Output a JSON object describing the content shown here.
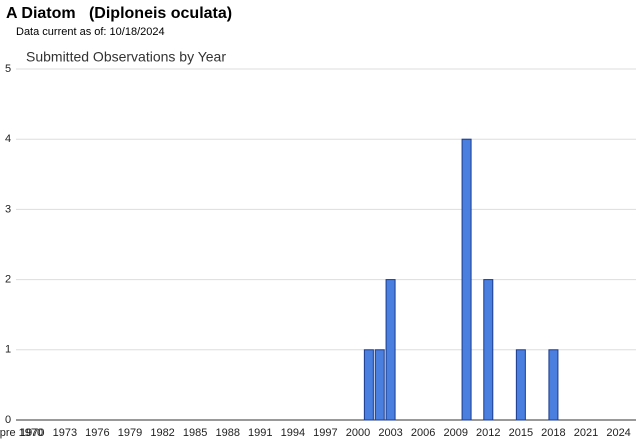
{
  "header": {
    "title": "A Diatom   (Diploneis oculata)",
    "subtitle": "Data current as of: 10/18/2024"
  },
  "chart_data": {
    "type": "bar",
    "title": "Submitted Observations by Year",
    "categories": [
      "pre 1970",
      "1970",
      null,
      null,
      "1973",
      null,
      null,
      "1976",
      null,
      null,
      "1979",
      null,
      null,
      "1982",
      null,
      null,
      "1985",
      null,
      null,
      "1988",
      null,
      null,
      "1991",
      null,
      null,
      "1994",
      null,
      null,
      "1997",
      null,
      null,
      "2000",
      null,
      null,
      "2003",
      null,
      null,
      "2006",
      null,
      null,
      "2009",
      null,
      null,
      "2012",
      null,
      null,
      "2015",
      null,
      null,
      "2018",
      null,
      null,
      "2021",
      null,
      null,
      "2024"
    ],
    "values": [
      0,
      0,
      0,
      0,
      0,
      0,
      0,
      0,
      0,
      0,
      0,
      0,
      0,
      0,
      0,
      0,
      0,
      0,
      0,
      0,
      0,
      0,
      0,
      0,
      0,
      0,
      0,
      0,
      0,
      0,
      0,
      0,
      1,
      1,
      2,
      0,
      0,
      0,
      0,
      0,
      0,
      4,
      0,
      2,
      0,
      0,
      1,
      0,
      0,
      1,
      0,
      0,
      0,
      0,
      0,
      0
    ],
    "color": "#4a7fe0",
    "ylim": [
      0,
      5
    ],
    "yticks": [
      0,
      1,
      2,
      3,
      4,
      5
    ],
    "grid": true
  }
}
